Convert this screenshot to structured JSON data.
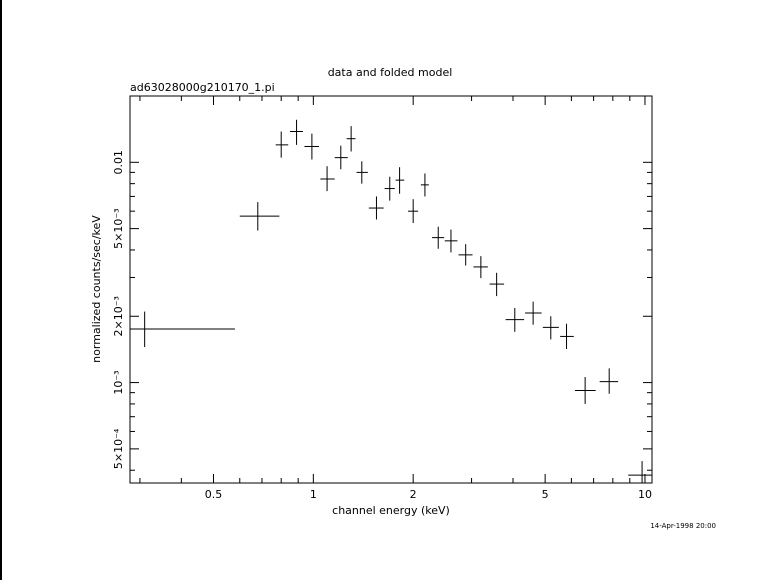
{
  "chart_data": {
    "type": "scatter",
    "title": "data and folded model",
    "subtitle": "ad63028000g210170_1.pi",
    "xlabel": "channel energy (keV)",
    "ylabel": "normalized counts/sec/keV",
    "timestamp": "14-Apr-1998 20:00",
    "x_scale": "log",
    "y_scale": "log",
    "xlim": [
      0.28,
      10.5
    ],
    "ylim": [
      0.00035,
      0.02
    ],
    "x_ticks": [
      {
        "value": 0.5,
        "label": "0.5"
      },
      {
        "value": 1,
        "label": "1"
      },
      {
        "value": 2,
        "label": "2"
      },
      {
        "value": 5,
        "label": "5"
      },
      {
        "value": 10,
        "label": "10"
      }
    ],
    "y_ticks": [
      {
        "value": 0.01,
        "label": "0.01"
      },
      {
        "value": 0.005,
        "label": "5×10⁻³"
      },
      {
        "value": 0.002,
        "label": "2×10⁻³"
      },
      {
        "value": 0.001,
        "label": "10⁻³"
      },
      {
        "value": 0.0005,
        "label": "5×10⁻⁴"
      }
    ],
    "grid": false,
    "legend": "none",
    "marker": "crosshair with x and y error bars",
    "points": [
      {
        "x": 0.31,
        "xlo": 0.28,
        "xhi": 0.58,
        "y": 0.00175,
        "ylo": 0.00145,
        "yhi": 0.0021
      },
      {
        "x": 0.68,
        "xlo": 0.6,
        "xhi": 0.79,
        "y": 0.0057,
        "ylo": 0.0049,
        "yhi": 0.0066
      },
      {
        "x": 0.8,
        "xlo": 0.77,
        "xhi": 0.84,
        "y": 0.012,
        "ylo": 0.0105,
        "yhi": 0.0138
      },
      {
        "x": 0.89,
        "xlo": 0.85,
        "xhi": 0.93,
        "y": 0.0138,
        "ylo": 0.012,
        "yhi": 0.0156
      },
      {
        "x": 0.99,
        "xlo": 0.94,
        "xhi": 1.04,
        "y": 0.0118,
        "ylo": 0.0103,
        "yhi": 0.0135
      },
      {
        "x": 1.1,
        "xlo": 1.05,
        "xhi": 1.16,
        "y": 0.0084,
        "ylo": 0.0074,
        "yhi": 0.0096
      },
      {
        "x": 1.21,
        "xlo": 1.16,
        "xhi": 1.27,
        "y": 0.0105,
        "ylo": 0.0093,
        "yhi": 0.0119
      },
      {
        "x": 1.3,
        "xlo": 1.26,
        "xhi": 1.34,
        "y": 0.0128,
        "ylo": 0.0112,
        "yhi": 0.0146
      },
      {
        "x": 1.4,
        "xlo": 1.35,
        "xhi": 1.46,
        "y": 0.009,
        "ylo": 0.008,
        "yhi": 0.0101
      },
      {
        "x": 1.55,
        "xlo": 1.47,
        "xhi": 1.63,
        "y": 0.0062,
        "ylo": 0.0055,
        "yhi": 0.007
      },
      {
        "x": 1.7,
        "xlo": 1.64,
        "xhi": 1.76,
        "y": 0.0076,
        "ylo": 0.0067,
        "yhi": 0.0086
      },
      {
        "x": 1.82,
        "xlo": 1.77,
        "xhi": 1.88,
        "y": 0.0083,
        "ylo": 0.0072,
        "yhi": 0.0095
      },
      {
        "x": 2.0,
        "xlo": 1.93,
        "xhi": 2.07,
        "y": 0.006,
        "ylo": 0.0053,
        "yhi": 0.0068
      },
      {
        "x": 2.17,
        "xlo": 2.11,
        "xhi": 2.23,
        "y": 0.0079,
        "ylo": 0.007,
        "yhi": 0.0089
      },
      {
        "x": 2.38,
        "xlo": 2.28,
        "xhi": 2.48,
        "y": 0.00455,
        "ylo": 0.00405,
        "yhi": 0.0051
      },
      {
        "x": 2.6,
        "xlo": 2.49,
        "xhi": 2.72,
        "y": 0.0044,
        "ylo": 0.0039,
        "yhi": 0.00495
      },
      {
        "x": 2.88,
        "xlo": 2.74,
        "xhi": 3.02,
        "y": 0.0038,
        "ylo": 0.0034,
        "yhi": 0.00425
      },
      {
        "x": 3.2,
        "xlo": 3.04,
        "xhi": 3.36,
        "y": 0.00335,
        "ylo": 0.00298,
        "yhi": 0.00375
      },
      {
        "x": 3.57,
        "xlo": 3.4,
        "xhi": 3.76,
        "y": 0.0028,
        "ylo": 0.00247,
        "yhi": 0.00315
      },
      {
        "x": 4.05,
        "xlo": 3.8,
        "xhi": 4.32,
        "y": 0.00193,
        "ylo": 0.0017,
        "yhi": 0.00218
      },
      {
        "x": 4.6,
        "xlo": 4.35,
        "xhi": 4.88,
        "y": 0.00207,
        "ylo": 0.00183,
        "yhi": 0.00233
      },
      {
        "x": 5.2,
        "xlo": 4.92,
        "xhi": 5.5,
        "y": 0.00178,
        "ylo": 0.00157,
        "yhi": 0.002
      },
      {
        "x": 5.8,
        "xlo": 5.55,
        "xhi": 6.1,
        "y": 0.00162,
        "ylo": 0.00142,
        "yhi": 0.00185
      },
      {
        "x": 6.6,
        "xlo": 6.15,
        "xhi": 7.1,
        "y": 0.00092,
        "ylo": 0.0008,
        "yhi": 0.00106
      },
      {
        "x": 7.8,
        "xlo": 7.3,
        "xhi": 8.3,
        "y": 0.00101,
        "ylo": 0.00089,
        "yhi": 0.00116
      },
      {
        "x": 9.8,
        "xlo": 8.9,
        "xhi": 10.5,
        "y": 0.00038,
        "ylo": 0.00035,
        "yhi": 0.00044
      }
    ]
  }
}
